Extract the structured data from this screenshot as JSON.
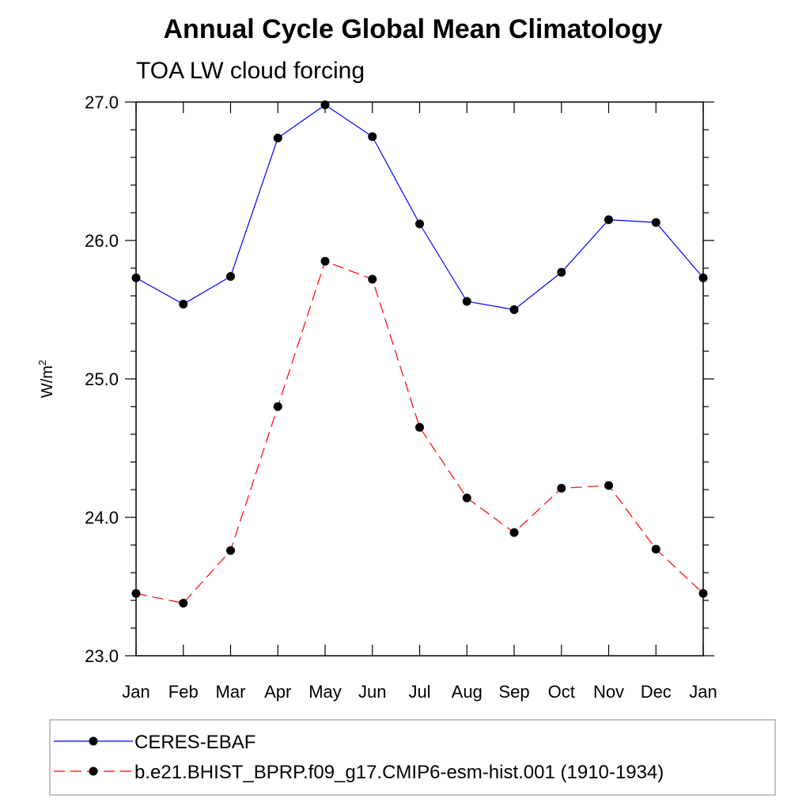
{
  "chart_data": {
    "type": "line",
    "title": "Annual Cycle Global Mean Climatology",
    "subtitle": "TOA LW cloud forcing",
    "ylabel": "W/m",
    "ylabel_sup": "2",
    "ylim": [
      23.0,
      27.0
    ],
    "y_ticks": [
      "23.0",
      "24.0",
      "25.0",
      "26.0",
      "27.0"
    ],
    "categories": [
      "Jan",
      "Feb",
      "Mar",
      "Apr",
      "May",
      "Jun",
      "Jul",
      "Aug",
      "Sep",
      "Oct",
      "Nov",
      "Dec",
      "Jan"
    ],
    "grid": false,
    "legend_position": "bottom",
    "series": [
      {
        "name": "CERES-EBAF",
        "color": "#0000ff",
        "dash": "solid",
        "marker": "circle",
        "values": [
          25.73,
          25.54,
          25.74,
          26.74,
          26.98,
          26.75,
          26.12,
          25.56,
          25.5,
          25.77,
          26.15,
          26.13,
          25.73
        ]
      },
      {
        "name": "b.e21.BHIST_BPRP.f09_g17.CMIP6-esm-hist.001 (1910-1934)",
        "color": "#ff0000",
        "dash": "dashed",
        "marker": "circle",
        "values": [
          23.45,
          23.38,
          23.76,
          24.8,
          25.85,
          25.72,
          24.65,
          24.14,
          23.89,
          24.21,
          24.23,
          23.77,
          23.45
        ]
      }
    ]
  }
}
